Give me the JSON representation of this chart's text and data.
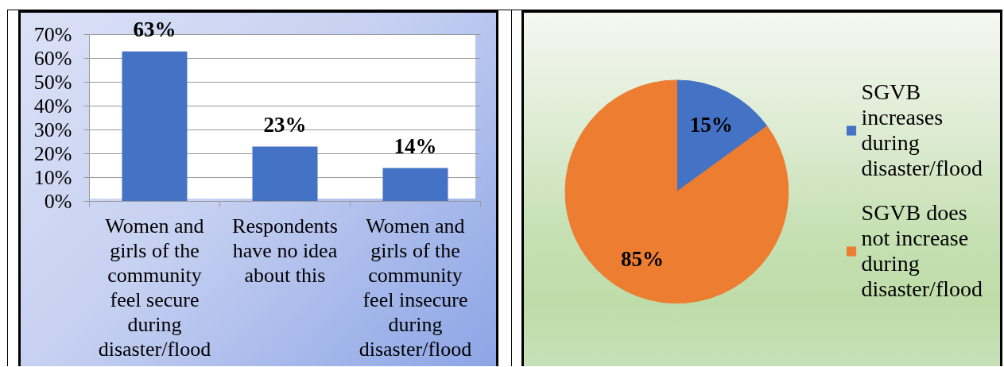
{
  "chart_data": [
    {
      "type": "bar",
      "categories": [
        "Women and girls of the community feel secure during disaster/flood",
        "Respondents have no idea about this",
        "Women and girls of the community feel insecure during disaster/flood"
      ],
      "values": [
        63,
        23,
        14
      ],
      "color": "#4472c4",
      "value_labels": [
        "63%",
        "23%",
        "14%"
      ],
      "ylim": [
        0,
        70
      ],
      "yticks": [
        {
          "value": 0,
          "label": "0%"
        },
        {
          "value": 10,
          "label": "10%"
        },
        {
          "value": 20,
          "label": "20%"
        },
        {
          "value": 30,
          "label": "30%"
        },
        {
          "value": 40,
          "label": "40%"
        },
        {
          "value": 50,
          "label": "50%"
        },
        {
          "value": 60,
          "label": "60%"
        },
        {
          "value": 70,
          "label": "70%"
        }
      ],
      "grid": "y"
    },
    {
      "type": "pie",
      "categories": [
        "SGVB increases during disaster/flood",
        "SGVB does not increase during disaster/flood"
      ],
      "values": [
        15,
        85
      ],
      "colors": [
        "#4472c4",
        "#ed7d31"
      ],
      "value_labels": [
        "15%",
        "85%"
      ],
      "legend": "right"
    }
  ]
}
